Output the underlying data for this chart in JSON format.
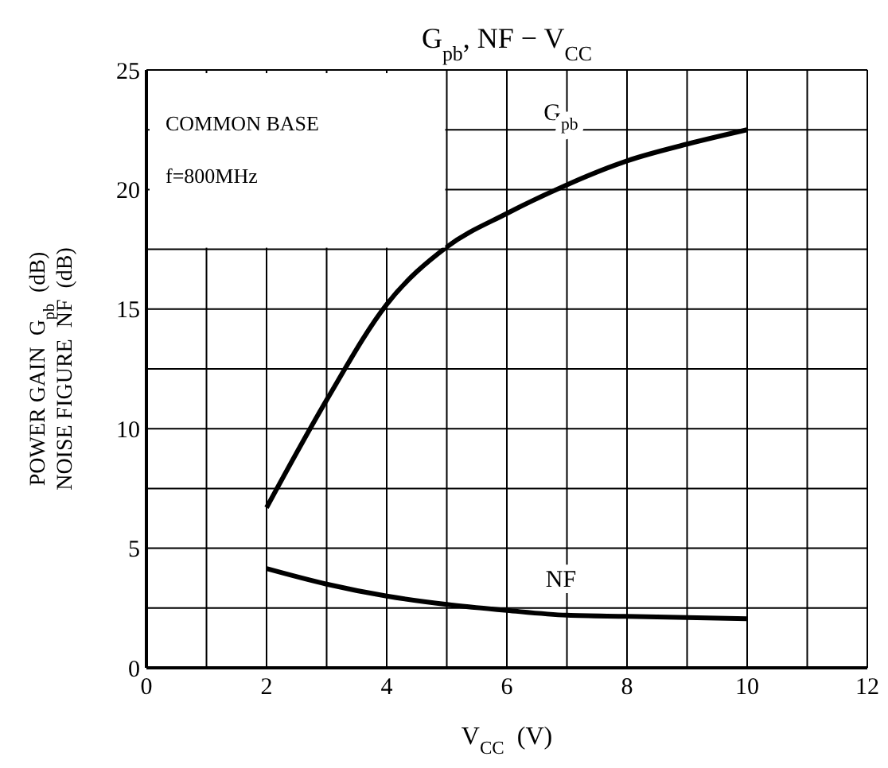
{
  "chart_data": {
    "type": "line",
    "title": "G$_{pb}$, NF − V$_{CC}$",
    "xlabel": "V$_{CC}$  (V)",
    "ylabel": "POWER GAIN  G$_{pb}$  (dB)\nNOISE FIGURE  NF  (dB)",
    "annotations": [
      "COMMON BASE",
      "f=800MHz"
    ],
    "series": [
      {
        "name": "G$_{pb}$",
        "color": "#000000",
        "x": [
          2,
          3,
          4,
          5,
          6,
          7,
          8,
          9,
          10
        ],
        "values": [
          6.7,
          11.2,
          15.2,
          17.6,
          19.0,
          20.2,
          21.2,
          21.9,
          22.5
        ]
      },
      {
        "name": "NF",
        "color": "#000000",
        "x": [
          2,
          3,
          4,
          5,
          6,
          7,
          8,
          10
        ],
        "values": [
          4.15,
          3.5,
          3.0,
          2.65,
          2.4,
          2.2,
          2.15,
          2.05
        ]
      }
    ],
    "xlim": [
      0,
      12
    ],
    "xticks": [
      0,
      {
        "value": 1,
        "label": null
      },
      2,
      {
        "value": 3,
        "label": null
      },
      4,
      {
        "value": 5,
        "label": null
      },
      6,
      {
        "value": 7,
        "label": null
      },
      8,
      {
        "value": 9,
        "label": null
      },
      10,
      {
        "value": 11,
        "label": null
      },
      12
    ],
    "ylim": [
      0,
      25
    ],
    "yticks": [
      0,
      {
        "value": 2.5,
        "label": null
      },
      5,
      {
        "value": 7.5,
        "label": null
      },
      10,
      {
        "value": 12.5,
        "label": null
      },
      15,
      {
        "value": 17.5,
        "label": null
      },
      20,
      {
        "value": 22.5,
        "label": null
      },
      25
    ],
    "grid": true,
    "marker": "none",
    "line_style": "solid"
  }
}
